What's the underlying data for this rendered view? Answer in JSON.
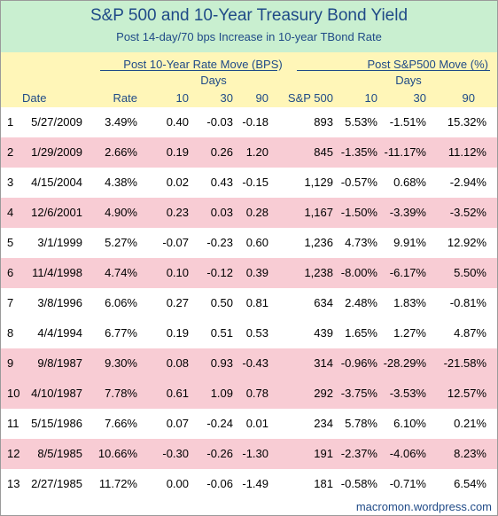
{
  "title": "S&P 500 and 10-Year Treasury Bond Yield",
  "subtitle": "Post 14-day/70 bps Increase in 10-year TBond Rate",
  "headers": {
    "rate_group": "Post 10-Year Rate Move (BPS)",
    "sp_group": "Post S&P500 Move (%)",
    "days_rate": "Days",
    "days_sp": "Days",
    "date": "Date",
    "rate": "Rate",
    "r10": "10",
    "r30": "30",
    "r90": "90",
    "sp500": "S&P 500",
    "s10": "10",
    "s30": "30",
    "s90": "90"
  },
  "rows": [
    {
      "n": "1",
      "date": "5/27/2009",
      "rate": "3.49%",
      "r10": "0.40",
      "r30": "-0.03",
      "r90": "-0.18",
      "sp": "893",
      "s10": "5.53%",
      "s30": "-1.51%",
      "s90": "15.32%",
      "highlight": false
    },
    {
      "n": "2",
      "date": "1/29/2009",
      "rate": "2.66%",
      "r10": "0.19",
      "r30": "0.26",
      "r90": "1.20",
      "sp": "845",
      "s10": "-1.35%",
      "s30": "-11.17%",
      "s90": "11.12%",
      "highlight": true
    },
    {
      "n": "3",
      "date": "4/15/2004",
      "rate": "4.38%",
      "r10": "0.02",
      "r30": "0.43",
      "r90": "-0.15",
      "sp": "1,129",
      "s10": "-0.57%",
      "s30": "0.68%",
      "s90": "-2.94%",
      "highlight": false
    },
    {
      "n": "4",
      "date": "12/6/2001",
      "rate": "4.90%",
      "r10": "0.23",
      "r30": "0.03",
      "r90": "0.28",
      "sp": "1,167",
      "s10": "-1.50%",
      "s30": "-3.39%",
      "s90": "-3.52%",
      "highlight": true
    },
    {
      "n": "5",
      "date": "3/1/1999",
      "rate": "5.27%",
      "r10": "-0.07",
      "r30": "-0.23",
      "r90": "0.60",
      "sp": "1,236",
      "s10": "4.73%",
      "s30": "9.91%",
      "s90": "12.92%",
      "highlight": false
    },
    {
      "n": "6",
      "date": "11/4/1998",
      "rate": "4.74%",
      "r10": "0.10",
      "r30": "-0.12",
      "r90": "0.39",
      "sp": "1,238",
      "s10": "-8.00%",
      "s30": "-6.17%",
      "s90": "5.50%",
      "highlight": true
    },
    {
      "n": "7",
      "date": "3/8/1996",
      "rate": "6.06%",
      "r10": "0.27",
      "r30": "0.50",
      "r90": "0.81",
      "sp": "634",
      "s10": "2.48%",
      "s30": "1.83%",
      "s90": "-0.81%",
      "highlight": false
    },
    {
      "n": "8",
      "date": "4/4/1994",
      "rate": "6.77%",
      "r10": "0.19",
      "r30": "0.51",
      "r90": "0.53",
      "sp": "439",
      "s10": "1.65%",
      "s30": "1.27%",
      "s90": "4.87%",
      "highlight": false
    },
    {
      "n": "9",
      "date": "9/8/1987",
      "rate": "9.30%",
      "r10": "0.08",
      "r30": "0.93",
      "r90": "-0.43",
      "sp": "314",
      "s10": "-0.96%",
      "s30": "-28.29%",
      "s90": "-21.58%",
      "highlight": true
    },
    {
      "n": "10",
      "date": "4/10/1987",
      "rate": "7.78%",
      "r10": "0.61",
      "r30": "1.09",
      "r90": "0.78",
      "sp": "292",
      "s10": "-3.75%",
      "s30": "-3.53%",
      "s90": "12.57%",
      "highlight": true
    },
    {
      "n": "11",
      "date": "5/15/1986",
      "rate": "7.66%",
      "r10": "0.07",
      "r30": "-0.24",
      "r90": "0.01",
      "sp": "234",
      "s10": "5.78%",
      "s30": "6.10%",
      "s90": "0.21%",
      "highlight": false
    },
    {
      "n": "12",
      "date": "8/5/1985",
      "rate": "10.66%",
      "r10": "-0.30",
      "r30": "-0.26",
      "r90": "-1.30",
      "sp": "191",
      "s10": "-2.37%",
      "s30": "-4.06%",
      "s90": "8.23%",
      "highlight": true
    },
    {
      "n": "13",
      "date": "2/27/1985",
      "rate": "11.72%",
      "r10": "0.00",
      "r30": "-0.06",
      "r90": "-1.49",
      "sp": "181",
      "s10": "-0.58%",
      "s30": "-0.71%",
      "s90": "6.54%",
      "highlight": false
    }
  ],
  "footer": "macromon.wordpress.com"
}
